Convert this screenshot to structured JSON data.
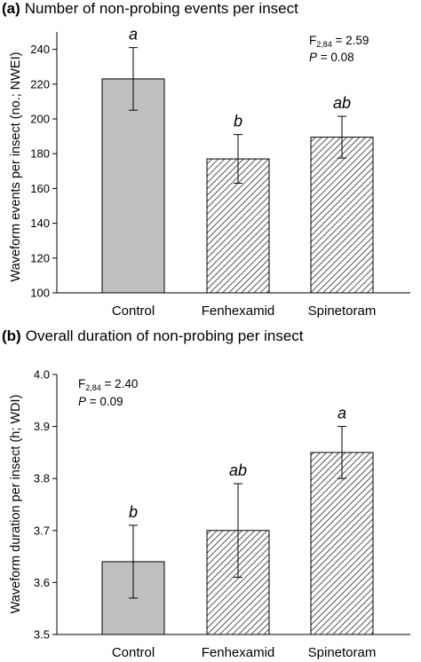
{
  "chart_data": [
    {
      "type": "bar",
      "panel_label": "(a)",
      "title": "Number of non-probing events per insect",
      "xlabel": "",
      "ylabel": "Waveform events per insect (no.; NWEI)",
      "categories": [
        "Control",
        "Fenhexamid",
        "Spinetoram"
      ],
      "values": [
        223,
        177,
        189.5
      ],
      "errors": [
        18,
        14,
        12
      ],
      "significance_letters": [
        "a",
        "b",
        "ab"
      ],
      "bar_patterns": [
        "solid",
        "hatched",
        "hatched"
      ],
      "ylim": [
        100,
        250
      ],
      "yticks": [
        "100",
        "120",
        "140",
        "160",
        "180",
        "200",
        "220",
        "240"
      ],
      "stats": {
        "f_prefix": "F",
        "f_subscript": "2,84",
        "f_value": " = 2.59",
        "p_symbol": "P",
        "p_value": " = 0.08"
      },
      "legend_position": "top-right"
    },
    {
      "type": "bar",
      "panel_label": "(b)",
      "title": "Overall duration of non-probing per insect",
      "xlabel": "",
      "ylabel": "Waveform duration per insect (h; WDI)",
      "categories": [
        "Control",
        "Fenhexamid",
        "Spinetoram"
      ],
      "values": [
        3.64,
        3.7,
        3.85
      ],
      "errors": [
        0.07,
        0.09,
        0.05
      ],
      "significance_letters": [
        "b",
        "ab",
        "a"
      ],
      "bar_patterns": [
        "solid",
        "hatched",
        "hatched"
      ],
      "ylim": [
        3.5,
        4.0
      ],
      "yticks": [
        "3.5",
        "3.6",
        "3.7",
        "3.8",
        "3.9",
        "4.0"
      ],
      "stats": {
        "f_prefix": "F",
        "f_subscript": "2,84",
        "f_value": " = 2.40",
        "p_symbol": "P",
        "p_value": " = 0.09"
      },
      "legend_position": "top-left"
    }
  ],
  "colors": {
    "bar_fill": "#c0c0c0",
    "hatch": "#555555",
    "axis": "#000000"
  }
}
